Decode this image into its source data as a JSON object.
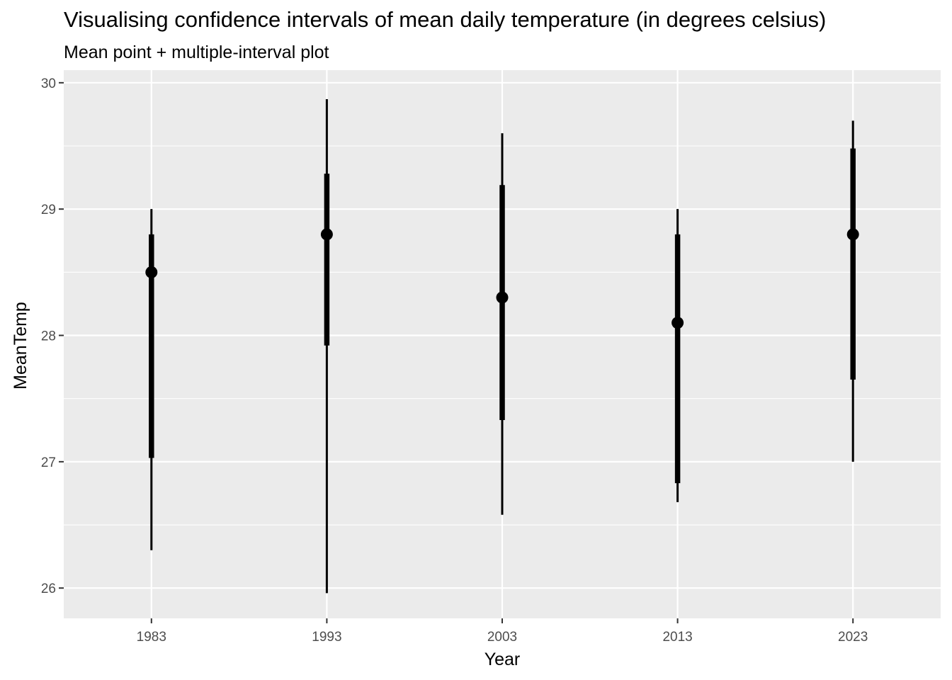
{
  "chart_data": {
    "type": "scatter",
    "title": "Visualising confidence intervals of mean daily temperature (in degrees celsius)",
    "subtitle": "Mean point + multiple-interval plot",
    "xlabel": "Year",
    "ylabel": "MeanTemp",
    "ylim": [
      25.76,
      30.1
    ],
    "categories": [
      "1983",
      "1993",
      "2003",
      "2013",
      "2023"
    ],
    "y_ticks": [
      "26",
      "27",
      "28",
      "29",
      "30"
    ],
    "grid": true,
    "background": "#ebebeb",
    "grid_color": "#ffffff",
    "mark_color": "#000000",
    "points": [
      {
        "x": "1983",
        "mean": 28.5,
        "inner": [
          27.03,
          28.8
        ],
        "outer": [
          26.3,
          29.0
        ]
      },
      {
        "x": "1993",
        "mean": 28.8,
        "inner": [
          27.92,
          29.28
        ],
        "outer": [
          25.96,
          29.87
        ]
      },
      {
        "x": "2003",
        "mean": 28.3,
        "inner": [
          27.33,
          29.19
        ],
        "outer": [
          26.58,
          29.6
        ]
      },
      {
        "x": "2013",
        "mean": 28.1,
        "inner": [
          26.83,
          28.8
        ],
        "outer": [
          26.68,
          29.0
        ]
      },
      {
        "x": "2023",
        "mean": 28.8,
        "inner": [
          27.65,
          29.48
        ],
        "outer": [
          27.0,
          29.7
        ]
      }
    ]
  }
}
